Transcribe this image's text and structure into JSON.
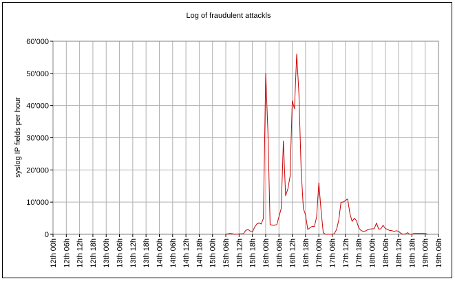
{
  "chart_data": {
    "type": "line",
    "title": "Log of fraudulent attackls",
    "xlabel": "",
    "ylabel": "syslog IP fields per hour",
    "grid": true,
    "legend": "none",
    "line_color": "#cc0000",
    "categories": [
      "12th 00h",
      "12th 06h",
      "12th 12h",
      "12th 18h",
      "13th 00h",
      "13th 06h",
      "13th 12h",
      "13th 18h",
      "14th 00h",
      "14th 06h",
      "14th 12h",
      "14th 18h",
      "15th 00h",
      "15th 06h",
      "15th 12h",
      "15th 18h",
      "16th 00h",
      "16th 06h",
      "16th 12h",
      "16th 18h",
      "17th 00h",
      "17th 06h",
      "17th 12h",
      "17th 18h",
      "18th 00h",
      "18th 06h",
      "18th 12h",
      "18th 18h",
      "19th 00h",
      "19th 06h"
    ],
    "y_ticks": [
      "0",
      "10'000",
      "20'000",
      "30'000",
      "40'000",
      "50'000",
      "60'000"
    ],
    "ylim": [
      0,
      60000
    ],
    "hours_per_category": 6,
    "points": [
      [
        78,
        0
      ],
      [
        80,
        300
      ],
      [
        82,
        0
      ],
      [
        86,
        200
      ],
      [
        87,
        1200
      ],
      [
        88,
        1500
      ],
      [
        89,
        1000
      ],
      [
        90,
        700
      ],
      [
        91,
        2200
      ],
      [
        92,
        3200
      ],
      [
        93,
        3500
      ],
      [
        94,
        3200
      ],
      [
        95,
        5000
      ],
      [
        96,
        50000
      ],
      [
        97,
        32000
      ],
      [
        98,
        3000
      ],
      [
        99,
        2800
      ],
      [
        100,
        2800
      ],
      [
        101,
        3000
      ],
      [
        102,
        5500
      ],
      [
        103,
        8000
      ],
      [
        104,
        29000
      ],
      [
        105,
        12000
      ],
      [
        106,
        14000
      ],
      [
        107,
        18000
      ],
      [
        108,
        41500
      ],
      [
        109,
        39000
      ],
      [
        110,
        56000
      ],
      [
        111,
        44000
      ],
      [
        112,
        20000
      ],
      [
        113,
        8000
      ],
      [
        114,
        6000
      ],
      [
        115,
        1500
      ],
      [
        116,
        2000
      ],
      [
        117,
        2500
      ],
      [
        118,
        2400
      ],
      [
        119,
        5500
      ],
      [
        120,
        16000
      ],
      [
        121,
        7500
      ],
      [
        122,
        500
      ],
      [
        123,
        0
      ],
      [
        126,
        0
      ],
      [
        127,
        200
      ],
      [
        128,
        1500
      ],
      [
        129,
        4500
      ],
      [
        130,
        10000
      ],
      [
        131,
        10000
      ],
      [
        132,
        10500
      ],
      [
        133,
        11000
      ],
      [
        134,
        6500
      ],
      [
        135,
        4000
      ],
      [
        136,
        5000
      ],
      [
        137,
        4200
      ],
      [
        138,
        2000
      ],
      [
        139,
        1200
      ],
      [
        140,
        900
      ],
      [
        141,
        1000
      ],
      [
        142,
        1400
      ],
      [
        143,
        1600
      ],
      [
        144,
        1700
      ],
      [
        145,
        1700
      ],
      [
        146,
        3500
      ],
      [
        147,
        1600
      ],
      [
        148,
        1700
      ],
      [
        149,
        2800
      ],
      [
        150,
        1800
      ],
      [
        151,
        1500
      ],
      [
        152,
        1200
      ],
      [
        153,
        1100
      ],
      [
        154,
        900
      ],
      [
        155,
        1100
      ],
      [
        156,
        900
      ],
      [
        157,
        300
      ],
      [
        158,
        0
      ],
      [
        159,
        100
      ],
      [
        160,
        500
      ],
      [
        161,
        0
      ],
      [
        162,
        0
      ],
      [
        163,
        300
      ],
      [
        168,
        300
      ],
      [
        169,
        0
      ]
    ]
  }
}
